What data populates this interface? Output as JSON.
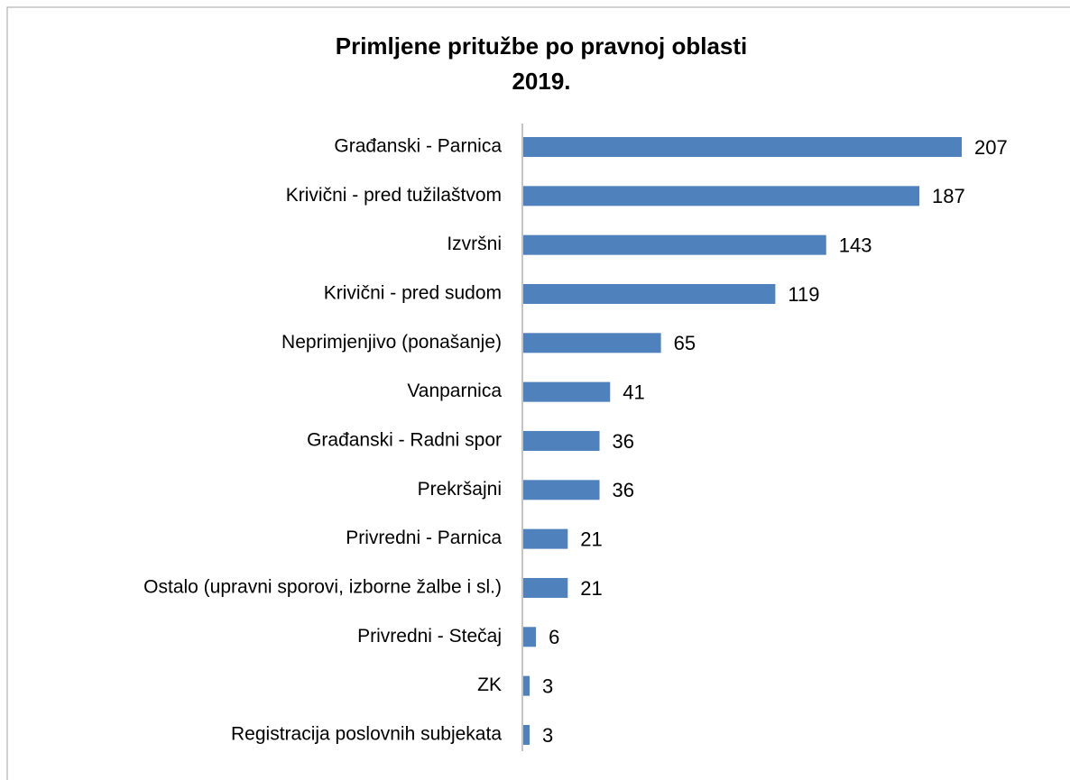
{
  "chart_data": {
    "type": "bar",
    "orientation": "horizontal",
    "title": [
      "Primljene pritužbe po pravnoj oblasti",
      "2019."
    ],
    "categories": [
      "Građanski - Parnica",
      "Krivični - pred tužilaštvom",
      "Izvršni",
      "Krivični - pred sudom",
      "Neprimjenjivo (ponašanje)",
      "Vanparnica",
      "Građanski - Radni spor",
      "Prekršajni",
      "Privredni - Parnica",
      "Ostalo (upravni sporovi, izborne žalbe i sl.)",
      "Privredni - Stečaj",
      "ZK",
      "Registracija poslovnih subjekata"
    ],
    "values": [
      207,
      187,
      143,
      119,
      65,
      41,
      36,
      36,
      21,
      21,
      6,
      3,
      3
    ],
    "color": "#4f81bd"
  }
}
